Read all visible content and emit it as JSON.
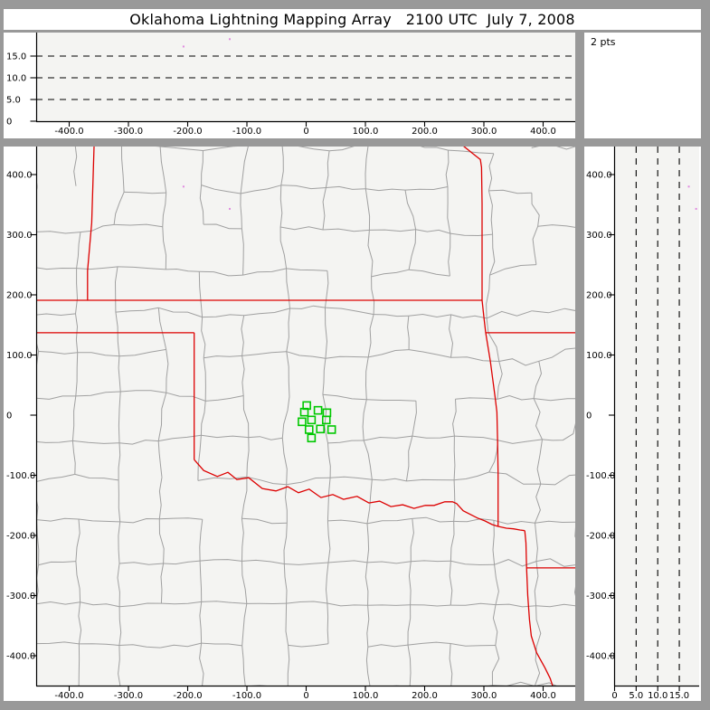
{
  "title": "Oklahoma Lightning Mapping Array   2100 UTC  July 7, 2008",
  "status": {
    "points_label": "2 pts"
  },
  "colors": {
    "frame": "#999999",
    "panel_margin": "#ffffff",
    "plot_bg": "#f4f4f2",
    "axis": "#000000",
    "dashed_line": "#000000",
    "county_line": "#a0a0a0",
    "state_border": "#dd0000",
    "station": "#00c800",
    "source_point": "#e08ae0",
    "title_text": "#000000"
  },
  "chart_data": {
    "type": "scatter",
    "units": {
      "distance": "km",
      "altitude": "km"
    },
    "grid": "dashed altitude reference lines at 5, 10, 15 km",
    "ticks": {
      "ew": [
        [
          -400,
          "-400.0"
        ],
        [
          -300,
          "-300.0"
        ],
        [
          -200,
          "-200.0"
        ],
        [
          -100,
          "-100.0"
        ],
        [
          0,
          "0"
        ],
        [
          100,
          "100.0"
        ],
        [
          200,
          "200.0"
        ],
        [
          300,
          "300.0"
        ],
        [
          400,
          "400.0"
        ]
      ],
      "ns": [
        [
          400,
          "400.0"
        ],
        [
          300,
          "300.0"
        ],
        [
          200,
          "200.0"
        ],
        [
          100,
          "100.0"
        ],
        [
          0,
          "0"
        ],
        [
          -100,
          "-100.0"
        ],
        [
          -200,
          "-200.0"
        ],
        [
          -300,
          "-300.0"
        ],
        [
          -400,
          "-400.0"
        ]
      ],
      "alt": [
        [
          0,
          "0"
        ],
        [
          5,
          "5.0"
        ],
        [
          10,
          "10.0"
        ],
        [
          15,
          "15.0"
        ]
      ]
    },
    "panels": [
      {
        "id": "altitude-vs-east-west",
        "x_range": [
          -456,
          454
        ],
        "y_range": [
          0,
          20.4
        ],
        "dashed_y": [
          5,
          10,
          15
        ],
        "points": [
          {
            "x": -207,
            "y": 17.2
          },
          {
            "x": -129,
            "y": 18.9
          }
        ]
      },
      {
        "id": "plan-view",
        "x_range": [
          -456,
          454
        ],
        "y_range": [
          -450,
          447
        ],
        "points": [
          {
            "x": -207,
            "y": 380
          },
          {
            "x": -129,
            "y": 343
          }
        ],
        "stations": [
          [
            1,
            16
          ],
          [
            -3,
            5
          ],
          [
            20,
            8
          ],
          [
            35,
            4
          ],
          [
            9,
            -8
          ],
          [
            -7,
            -11
          ],
          [
            34,
            -8
          ],
          [
            5,
            -24
          ],
          [
            24,
            -23
          ],
          [
            43,
            -24
          ],
          [
            9,
            -38
          ]
        ],
        "state_borders": {
          "co_ks": [
            [
              -358,
              447
            ],
            [
              -362,
              320
            ],
            [
              -369,
              240
            ],
            [
              -369,
              191
            ]
          ],
          "ks_ok_37n": [
            [
              -460,
              191
            ],
            [
              297,
              191
            ]
          ],
          "panhandle_36_5n": [
            [
              -460,
              137
            ],
            [
              -189,
              137
            ]
          ],
          "tx_ok_100w": [
            [
              -189,
              137
            ],
            [
              -189,
              -74
            ]
          ],
          "ks_mo": [
            [
              266,
              447
            ],
            [
              285,
              432
            ],
            [
              294,
              425
            ],
            [
              296,
              412
            ],
            [
              297,
              352
            ],
            [
              297,
              191
            ],
            [
              300,
              163
            ],
            [
              303,
              137
            ]
          ],
          "mo_ar_36_5n": [
            [
              303,
              137
            ],
            [
              456,
              137
            ]
          ],
          "ok_ar": [
            [
              303,
              137
            ],
            [
              311,
              89
            ],
            [
              319,
              30
            ],
            [
              322,
              5
            ],
            [
              323,
              -40
            ],
            [
              324,
              -95
            ],
            [
              324,
              -150
            ],
            [
              324,
              -185
            ]
          ],
          "red_river": [
            [
              -189,
              -74
            ],
            [
              -173,
              -92
            ],
            [
              -150,
              -102
            ],
            [
              -132,
              -95
            ],
            [
              -117,
              -107
            ],
            [
              -97,
              -104
            ],
            [
              -74,
              -122
            ],
            [
              -51,
              -126
            ],
            [
              -31,
              -119
            ],
            [
              -13,
              -129
            ],
            [
              5,
              -123
            ],
            [
              25,
              -137
            ],
            [
              45,
              -132
            ],
            [
              63,
              -140
            ],
            [
              86,
              -135
            ],
            [
              106,
              -146
            ],
            [
              124,
              -143
            ],
            [
              143,
              -152
            ],
            [
              163,
              -149
            ],
            [
              182,
              -155
            ],
            [
              201,
              -150
            ],
            [
              216,
              -150
            ],
            [
              234,
              -144
            ],
            [
              247,
              -144
            ],
            [
              254,
              -147
            ],
            [
              265,
              -159
            ],
            [
              277,
              -165
            ],
            [
              289,
              -171
            ],
            [
              302,
              -176
            ],
            [
              314,
              -182
            ],
            [
              324,
              -185
            ],
            [
              338,
              -188
            ],
            [
              350,
              -189
            ],
            [
              361,
              -191
            ],
            [
              369,
              -192
            ]
          ],
          "tx_ar": [
            [
              369,
              -192
            ],
            [
              371,
              -212
            ],
            [
              372,
              -254
            ]
          ],
          "ar_la_33n": [
            [
              372,
              -254
            ],
            [
              456,
              -254
            ]
          ],
          "tx_la": [
            [
              372,
              -254
            ],
            [
              374,
              -300
            ],
            [
              377,
              -340
            ],
            [
              380,
              -367
            ],
            [
              389,
              -395
            ],
            [
              403,
              -420
            ],
            [
              412,
              -438
            ],
            [
              416,
              -450
            ]
          ]
        }
      },
      {
        "id": "altitude-vs-north-south",
        "x_range": [
          0,
          19.6
        ],
        "y_range": [
          -450,
          447
        ],
        "dashed_x": [
          5,
          10,
          15
        ],
        "points": [
          {
            "x": 17.2,
            "y": 380
          },
          {
            "x": 18.9,
            "y": 343
          }
        ]
      }
    ]
  }
}
